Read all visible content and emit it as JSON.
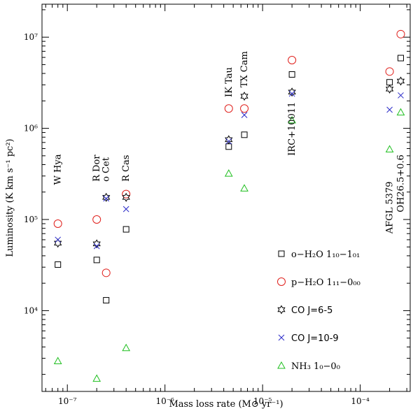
{
  "chart_data": {
    "type": "scatter",
    "title": "",
    "xlabel": "Mass loss rate (M⊙ yr⁻¹)",
    "ylabel": "Luminosity (K km s⁻¹ pc²)",
    "xscale": "log",
    "yscale": "log",
    "xlim": [
      5.5e-08,
      0.000325
    ],
    "ylim": [
      1300,
      23000000
    ],
    "x_ticks": [
      {
        "value": 1e-07,
        "label": "10⁻⁷"
      },
      {
        "value": 1e-06,
        "label": "10⁻⁶"
      },
      {
        "value": 1e-05,
        "label": "10⁻⁵"
      },
      {
        "value": 0.0001,
        "label": "10⁻⁴"
      }
    ],
    "y_ticks": [
      {
        "value": 10000,
        "label": "10⁴"
      },
      {
        "value": 100000,
        "label": "10⁵"
      },
      {
        "value": 1000000,
        "label": "10⁶"
      },
      {
        "value": 10000000,
        "label": "10⁷"
      }
    ],
    "grid": false,
    "legend_position": "bottom-right",
    "series": [
      {
        "name": "o−H₂O 1₁₀−1₀₁",
        "marker": "square",
        "color": "#000000",
        "points": [
          {
            "x": 8e-08,
            "y": 32000
          },
          {
            "x": 2e-07,
            "y": 36000
          },
          {
            "x": 2.5e-07,
            "y": 13000
          },
          {
            "x": 4e-07,
            "y": 78000
          },
          {
            "x": 4.5e-06,
            "y": 630000
          },
          {
            "x": 6.5e-06,
            "y": 850000
          },
          {
            "x": 2e-05,
            "y": 3900000
          },
          {
            "x": 0.0002,
            "y": 3200000
          },
          {
            "x": 0.00026,
            "y": 5900000
          }
        ]
      },
      {
        "name": "p−H₂O 1₁₁−0₀₀",
        "marker": "circle",
        "color": "#e0201c",
        "points": [
          {
            "x": 8e-08,
            "y": 90000
          },
          {
            "x": 2e-07,
            "y": 100000
          },
          {
            "x": 2.5e-07,
            "y": 26000
          },
          {
            "x": 4e-07,
            "y": 190000
          },
          {
            "x": 4.5e-06,
            "y": 1650000
          },
          {
            "x": 6.5e-06,
            "y": 1650000
          },
          {
            "x": 2e-05,
            "y": 5600000
          },
          {
            "x": 0.0002,
            "y": 4200000
          },
          {
            "x": 0.00026,
            "y": 10800000
          }
        ]
      },
      {
        "name": "CO J=6-5",
        "marker": "star",
        "color": "#000000",
        "points": [
          {
            "x": 8e-08,
            "y": 55000
          },
          {
            "x": 2e-07,
            "y": 54000
          },
          {
            "x": 2.5e-07,
            "y": 175000
          },
          {
            "x": 4e-07,
            "y": 175000
          },
          {
            "x": 4.5e-06,
            "y": 750000
          },
          {
            "x": 6.5e-06,
            "y": 2250000
          },
          {
            "x": 2e-05,
            "y": 2500000
          },
          {
            "x": 0.0002,
            "y": 2700000
          },
          {
            "x": 0.00026,
            "y": 3300000
          }
        ]
      },
      {
        "name": "CO J=10-9",
        "marker": "cross",
        "color": "#2b2bc8",
        "points": [
          {
            "x": 8e-08,
            "y": 60000
          },
          {
            "x": 2e-07,
            "y": 51000
          },
          {
            "x": 2.5e-07,
            "y": 170000
          },
          {
            "x": 4e-07,
            "y": 130000
          },
          {
            "x": 4.5e-06,
            "y": 720000
          },
          {
            "x": 6.5e-06,
            "y": 1400000
          },
          {
            "x": 2e-05,
            "y": 2400000
          },
          {
            "x": 0.0002,
            "y": 1600000
          },
          {
            "x": 0.00026,
            "y": 2300000
          }
        ]
      },
      {
        "name": "NH₃ 1₀−0₀",
        "marker": "triangle",
        "color": "#1fbf1f",
        "points": [
          {
            "x": 8e-08,
            "y": 2800
          },
          {
            "x": 2e-07,
            "y": 1800
          },
          {
            "x": 4e-07,
            "y": 3900
          },
          {
            "x": 4.5e-06,
            "y": 320000
          },
          {
            "x": 6.5e-06,
            "y": 220000
          },
          {
            "x": 2e-05,
            "y": 1230000
          },
          {
            "x": 0.0002,
            "y": 590000
          },
          {
            "x": 0.00026,
            "y": 1500000
          }
        ]
      }
    ],
    "annotations": [
      {
        "text": "W Hya",
        "x": 8e-08,
        "y": 240000
      },
      {
        "text": "R Dor",
        "x": 2e-07,
        "y": 260000
      },
      {
        "text": "o Cet",
        "x": 2.5e-07,
        "y": 260000
      },
      {
        "text": "R Cas",
        "x": 4e-07,
        "y": 260000
      },
      {
        "text": "IK Tau",
        "x": 4.5e-06,
        "y": 2200000
      },
      {
        "text": "TX Cam",
        "x": 6.5e-06,
        "y": 2800000
      },
      {
        "text": "IRC+10011",
        "x": 2e-05,
        "y": 500000
      },
      {
        "text": "AFGL 5379",
        "x": 0.0002,
        "y": 70000
      },
      {
        "text": "OH26.5+0.6",
        "x": 0.00026,
        "y": 120000
      }
    ]
  }
}
